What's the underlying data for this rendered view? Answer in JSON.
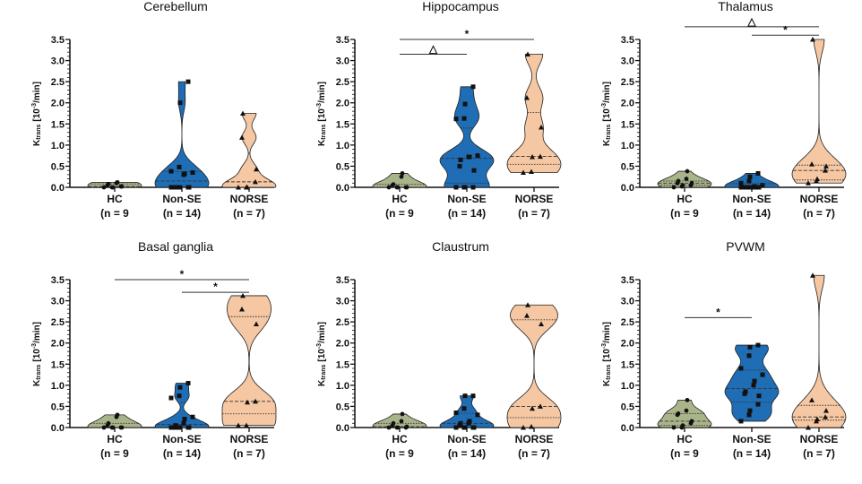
{
  "chart_data": [
    {
      "type": "violin",
      "title": "Cerebellum",
      "ylim": [
        0,
        3.5
      ],
      "yticks": [
        "0.0",
        "0.5",
        "1.0",
        "1.5",
        "2.0",
        "2.5",
        "3.0",
        "3.5"
      ],
      "ylabel": {
        "symbol": "K",
        "subscript": "trans",
        "unit": "[10",
        "exponent": "-3",
        "unit_end": "/min]"
      },
      "categories": [
        "HC",
        "Non-SE",
        "NORSE"
      ],
      "counts": [
        "(n = 9",
        "(n = 14)",
        "(n = 7)"
      ],
      "series": [
        {
          "values": [
            0,
            0,
            0,
            0.02,
            0.02,
            0.05,
            0.08,
            0.1,
            0.12
          ]
        },
        {
          "values": [
            0,
            0,
            0,
            0,
            0,
            0,
            0,
            0.3,
            0.32,
            0.35,
            0.38,
            0.48,
            2.0,
            2.5
          ]
        },
        {
          "values": [
            0,
            0,
            0,
            0.13,
            0.43,
            1.18,
            1.75
          ]
        }
      ],
      "significance": []
    },
    {
      "type": "violin",
      "title": "Hippocampus",
      "ylim": [
        0,
        3.5
      ],
      "yticks": [
        "0.0",
        "0.5",
        "1.0",
        "1.5",
        "2.0",
        "2.5",
        "3.0",
        "3.5"
      ],
      "ylabel": {
        "symbol": "K",
        "subscript": "trans",
        "unit": "[10",
        "exponent": "-3",
        "unit_end": "/min]"
      },
      "categories": [
        "HC",
        "Non-SE",
        "NORSE"
      ],
      "counts": [
        "(n = 9",
        "(n = 14)",
        "(n = 7)"
      ],
      "series": [
        {
          "values": [
            0,
            0,
            0,
            0,
            0,
            0.05,
            0.07,
            0.25,
            0.33
          ]
        },
        {
          "values": [
            0,
            0,
            0,
            0,
            0.4,
            0.5,
            0.65,
            0.72,
            0.72,
            0.75,
            1.62,
            1.63,
            1.97,
            2.38
          ]
        },
        {
          "values": [
            0.35,
            0.37,
            0.72,
            0.73,
            1.42,
            2.12,
            3.15
          ]
        }
      ],
      "significance": [
        {
          "from": 0,
          "to": 1,
          "y": 3.15,
          "mark": "△"
        },
        {
          "from": 0,
          "to": 2,
          "y": 3.5,
          "mark": "*"
        }
      ]
    },
    {
      "type": "violin",
      "title": "Thalamus",
      "ylim": [
        0,
        3.5
      ],
      "yticks": [
        "0.0",
        "0.5",
        "1.0",
        "1.5",
        "2.0",
        "2.5",
        "3.0",
        "3.5"
      ],
      "ylabel": {
        "symbol": "K",
        "subscript": "trans",
        "unit": "[10",
        "exponent": "-3",
        "unit_end": "/min]"
      },
      "categories": [
        "HC",
        "Non-SE",
        "NORSE"
      ],
      "counts": [
        "(n = 9",
        "(n = 14)",
        "(n = 7)"
      ],
      "series": [
        {
          "values": [
            0,
            0.02,
            0.05,
            0.05,
            0.1,
            0.1,
            0.15,
            0.2,
            0.38
          ]
        },
        {
          "values": [
            0,
            0,
            0,
            0,
            0,
            0,
            0,
            0,
            0.02,
            0.05,
            0.1,
            0.15,
            0.25,
            0.33
          ]
        },
        {
          "values": [
            0.1,
            0.15,
            0.2,
            0.4,
            0.5,
            0.55,
            3.5
          ]
        }
      ],
      "significance": [
        {
          "from": 0,
          "to": 2,
          "y": 3.8,
          "mark": "△"
        },
        {
          "from": 1,
          "to": 2,
          "y": 3.6,
          "mark": "*"
        }
      ]
    },
    {
      "type": "violin",
      "title": "Basal ganglia",
      "ylim": [
        0,
        3.5
      ],
      "yticks": [
        "0.0",
        "0.5",
        "1.0",
        "1.5",
        "2.0",
        "2.5",
        "3.0",
        "3.5"
      ],
      "ylabel": {
        "symbol": "K",
        "subscript": "trans",
        "unit": "[10",
        "exponent": "-3",
        "unit_end": "/min]"
      },
      "categories": [
        "HC",
        "Non-SE",
        "NORSE"
      ],
      "counts": [
        "(n = 9",
        "(n = 14)",
        "(n = 7)"
      ],
      "series": [
        {
          "values": [
            0,
            0,
            0,
            0,
            0,
            0.05,
            0.1,
            0.25,
            0.3
          ]
        },
        {
          "values": [
            0,
            0,
            0,
            0,
            0,
            0,
            0.05,
            0.1,
            0.2,
            0.25,
            0.7,
            0.75,
            0.95,
            1.05
          ]
        },
        {
          "values": [
            0.05,
            0.05,
            0.6,
            0.62,
            2.45,
            2.8,
            3.12
          ]
        }
      ],
      "significance": [
        {
          "from": 0,
          "to": 2,
          "y": 3.5,
          "mark": "*"
        },
        {
          "from": 1,
          "to": 2,
          "y": 3.2,
          "mark": "*"
        }
      ]
    },
    {
      "type": "violin",
      "title": "Claustrum",
      "ylim": [
        0,
        3.5
      ],
      "yticks": [
        "0.0",
        "0.5",
        "1.0",
        "1.5",
        "2.0",
        "2.5",
        "3.0",
        "3.5"
      ],
      "ylabel": {
        "symbol": "K",
        "subscript": "trans",
        "unit": "[10",
        "exponent": "-3",
        "unit_end": "/min]"
      },
      "categories": [
        "HC",
        "Non-SE",
        "NORSE"
      ],
      "counts": [
        "(n = 9",
        "(n = 14)",
        "(n = 7)"
      ],
      "series": [
        {
          "values": [
            0,
            0,
            0,
            0,
            0.02,
            0.05,
            0.1,
            0.15,
            0.32
          ]
        },
        {
          "values": [
            0,
            0,
            0,
            0,
            0,
            0.05,
            0.1,
            0.1,
            0.15,
            0.3,
            0.35,
            0.45,
            0.75,
            0.75
          ]
        },
        {
          "values": [
            0,
            0.02,
            0.45,
            0.5,
            2.45,
            2.65,
            2.9
          ]
        }
      ],
      "significance": []
    },
    {
      "type": "violin",
      "title": "PVWM",
      "ylim": [
        0,
        3.5
      ],
      "yticks": [
        "0.0",
        "0.5",
        "1.0",
        "1.5",
        "2.0",
        "2.5",
        "3.0",
        "3.5"
      ],
      "ylabel": {
        "symbol": "K",
        "subscript": "trans",
        "unit": "[10",
        "exponent": "-3",
        "unit_end": "/min]"
      },
      "categories": [
        "HC",
        "Non-SE",
        "NORSE"
      ],
      "counts": [
        "(n = 9",
        "(n = 14)",
        "(n = 7)"
      ],
      "series": [
        {
          "values": [
            0,
            0,
            0.05,
            0.1,
            0.15,
            0.3,
            0.33,
            0.4,
            0.65
          ]
        },
        {
          "values": [
            0.15,
            0.3,
            0.4,
            0.55,
            0.75,
            0.8,
            0.85,
            1.0,
            1.1,
            1.25,
            1.4,
            1.7,
            1.9,
            1.95
          ]
        },
        {
          "values": [
            0,
            0.15,
            0.2,
            0.25,
            0.4,
            0.65,
            3.6
          ]
        }
      ],
      "significance": [
        {
          "from": 0,
          "to": 1,
          "y": 2.6,
          "mark": "*"
        }
      ]
    }
  ],
  "colors": {
    "HC": "#a9b48a",
    "Non-SE": "#1f6db5",
    "NORSE": "#f5c7a2"
  },
  "markers": {
    "HC": "circle",
    "Non-SE": "square",
    "NORSE": "triangle"
  }
}
